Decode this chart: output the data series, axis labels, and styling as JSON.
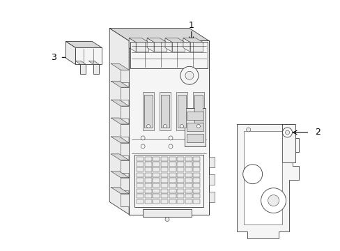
{
  "background_color": "#ffffff",
  "line_color": "#3a3a3a",
  "fill_light": "#f5f5f5",
  "fill_mid": "#ebebeb",
  "fill_dark": "#d8d8d8",
  "lw_main": 0.6,
  "lw_thin": 0.4,
  "label_fontsize": 9,
  "label_color": "#000000"
}
